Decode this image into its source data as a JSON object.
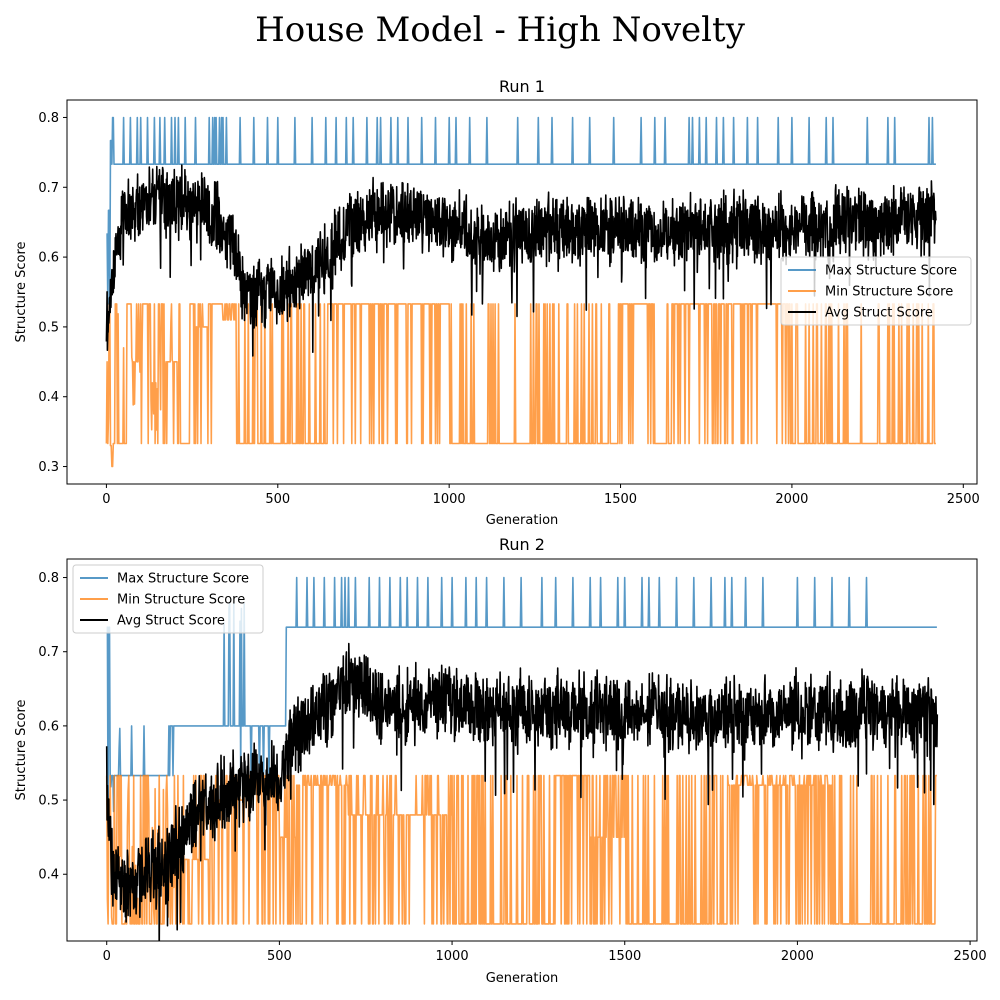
{
  "figure": {
    "title": "House Model - High Novelty"
  },
  "chart_data": [
    {
      "type": "line",
      "title": "Run 1",
      "xlabel": "Generation",
      "ylabel": "Structure Score",
      "xlim": [
        -115,
        2540
      ],
      "ylim": [
        0.275,
        0.825
      ],
      "xticks": [
        0,
        500,
        1000,
        1500,
        2000,
        2500
      ],
      "yticks": [
        0.3,
        0.4,
        0.5,
        0.6,
        0.7,
        0.8
      ],
      "xtick_labels": [
        "0",
        "500",
        "1000",
        "1500",
        "2000",
        "2500"
      ],
      "ytick_labels": [
        "0.3",
        "0.4",
        "0.5",
        "0.6",
        "0.7",
        "0.8"
      ],
      "legend_position": "center-right",
      "num_generations": 2420,
      "series": [
        {
          "name": "Max Structure Score",
          "color": "#1f77b4",
          "alpha": 0.75,
          "baseline": 0.733,
          "spike_value": 0.8,
          "early": [
            [
              0,
              0.633
            ],
            [
              3,
              0.533
            ],
            [
              6,
              0.667
            ],
            [
              9,
              0.533
            ],
            [
              12,
              0.767
            ],
            [
              15,
              0.733
            ],
            [
              18,
              0.8
            ],
            [
              22,
              0.733
            ]
          ],
          "spikes": [
            18,
            50,
            70,
            90,
            100,
            120,
            140,
            155,
            170,
            190,
            200,
            210,
            230,
            260,
            300,
            310,
            315,
            320,
            330,
            335,
            340,
            350,
            390,
            430,
            470,
            500,
            550,
            600,
            640,
            670,
            700,
            720,
            760,
            790,
            800,
            830,
            850,
            880,
            920,
            960,
            1000,
            1020,
            1060,
            1110,
            1200,
            1260,
            1300,
            1360,
            1410,
            1480,
            1560,
            1600,
            1630,
            1700,
            1710,
            1730,
            1750,
            1780,
            1800,
            1830,
            1870,
            1900,
            1960,
            2000,
            2050,
            2100,
            2120,
            2220,
            2280,
            2300,
            2400,
            2410
          ]
        },
        {
          "name": "Min Structure Score",
          "color": "#ff7f0e",
          "alpha": 0.75,
          "levels": [
            0.333,
            0.533
          ],
          "segments": [
            [
              0,
              0.45
            ],
            [
              5,
              0.37
            ],
            [
              10,
              0.33
            ],
            [
              15,
              0.3
            ],
            [
              20,
              0.42
            ],
            [
              30,
              0.333
            ],
            [
              60,
              0.533
            ],
            [
              80,
              0.45
            ],
            [
              100,
              0.533
            ],
            [
              130,
              0.42
            ],
            [
              150,
              0.533
            ],
            [
              170,
              0.45
            ],
            [
              210,
              0.333
            ],
            [
              240,
              0.533
            ],
            [
              260,
              0.5
            ],
            [
              300,
              0.533
            ],
            [
              340,
              0.51
            ],
            [
              380,
              0.333
            ],
            [
              650,
              0.533
            ],
            [
              1000,
              0.333
            ],
            [
              1500,
              0.533
            ],
            [
              1600,
              0.333
            ],
            [
              1650,
              0.533
            ],
            [
              2000,
              0.333
            ],
            [
              2420,
              0.333
            ]
          ],
          "noise_probability": 0.35
        },
        {
          "name": "Avg Struct Score",
          "color": "#000000",
          "alpha": 1.0,
          "keypoints": [
            [
              0,
              0.51
            ],
            [
              20,
              0.58
            ],
            [
              50,
              0.66
            ],
            [
              150,
              0.685
            ],
            [
              300,
              0.675
            ],
            [
              370,
              0.62
            ],
            [
              400,
              0.55
            ],
            [
              500,
              0.55
            ],
            [
              600,
              0.58
            ],
            [
              650,
              0.6
            ],
            [
              700,
              0.645
            ],
            [
              800,
              0.66
            ],
            [
              900,
              0.66
            ],
            [
              1000,
              0.65
            ],
            [
              1100,
              0.62
            ],
            [
              1200,
              0.635
            ],
            [
              1400,
              0.64
            ],
            [
              1600,
              0.635
            ],
            [
              1800,
              0.64
            ],
            [
              2000,
              0.64
            ],
            [
              2200,
              0.65
            ],
            [
              2420,
              0.66
            ]
          ],
          "noise": 0.05
        }
      ]
    },
    {
      "type": "line",
      "title": "Run 2",
      "xlabel": "Generation",
      "ylabel": "Structure Score",
      "xlim": [
        -115,
        2520
      ],
      "ylim": [
        0.31,
        0.825
      ],
      "xticks": [
        0,
        500,
        1000,
        1500,
        2000,
        2500
      ],
      "yticks": [
        0.4,
        0.5,
        0.6,
        0.7,
        0.8
      ],
      "xtick_labels": [
        "0",
        "500",
        "1000",
        "1500",
        "2000",
        "2500"
      ],
      "ytick_labels": [
        "0.4",
        "0.5",
        "0.6",
        "0.7",
        "0.8"
      ],
      "legend_position": "top-left",
      "num_generations": 2405,
      "series": [
        {
          "name": "Max Structure Score",
          "color": "#1f77b4",
          "alpha": 0.75,
          "segments": [
            [
              0,
              0.733
            ],
            [
              10,
              0.533
            ],
            [
              180,
              0.6
            ],
            [
              520,
              0.733
            ],
            [
              2405,
              0.733
            ]
          ],
          "spike_value": 0.8,
          "spikes": [
            550,
            580,
            600,
            630,
            660,
            680,
            690,
            700,
            720,
            760,
            790,
            820,
            850,
            870,
            900,
            930,
            970,
            1000,
            1040,
            1070,
            1100,
            1150,
            1200,
            1260,
            1300,
            1350,
            1400,
            1430,
            1480,
            1500,
            1550,
            1570,
            1600,
            1650,
            1700,
            1750,
            1790,
            1810,
            1850,
            1900,
            2000,
            2050,
            2100,
            2150,
            2200
          ]
        },
        {
          "name": "Min Structure Score",
          "color": "#ff7f0e",
          "alpha": 0.75,
          "levels": [
            0.333,
            0.533
          ],
          "segments": [
            [
              0,
              0.47
            ],
            [
              10,
              0.333
            ],
            [
              180,
              0.42
            ],
            [
              300,
              0.5
            ],
            [
              400,
              0.533
            ],
            [
              500,
              0.45
            ],
            [
              550,
              0.52
            ],
            [
              700,
              0.48
            ],
            [
              1000,
              0.333
            ],
            [
              1300,
              0.533
            ],
            [
              1400,
              0.45
            ],
            [
              1500,
              0.333
            ],
            [
              1800,
              0.52
            ],
            [
              2100,
              0.333
            ],
            [
              2400,
              0.533
            ]
          ],
          "noise_probability": 0.5
        },
        {
          "name": "Avg Struct Score",
          "color": "#000000",
          "alpha": 1.0,
          "keypoints": [
            [
              0,
              0.52
            ],
            [
              15,
              0.42
            ],
            [
              60,
              0.38
            ],
            [
              120,
              0.4
            ],
            [
              180,
              0.42
            ],
            [
              250,
              0.48
            ],
            [
              380,
              0.52
            ],
            [
              500,
              0.53
            ],
            [
              540,
              0.58
            ],
            [
              620,
              0.62
            ],
            [
              700,
              0.66
            ],
            [
              800,
              0.63
            ],
            [
              1000,
              0.63
            ],
            [
              1200,
              0.62
            ],
            [
              1400,
              0.62
            ],
            [
              1600,
              0.62
            ],
            [
              1800,
              0.61
            ],
            [
              2000,
              0.62
            ],
            [
              2200,
              0.62
            ],
            [
              2405,
              0.61
            ]
          ],
          "noise": 0.05
        }
      ]
    }
  ]
}
